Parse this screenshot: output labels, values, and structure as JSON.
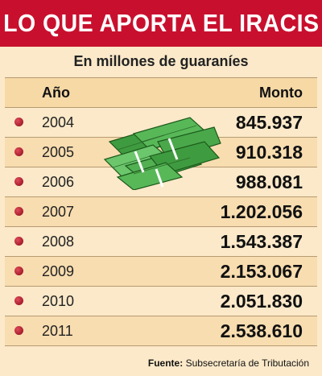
{
  "title": "LO QUE APORTA EL IRACIS",
  "subtitle": "En millones de guaraníes",
  "header": {
    "year_label": "Año",
    "amount_label": "Monto"
  },
  "colors": {
    "title_bg": "#c8102e",
    "bullet": "#b5102a",
    "background": "#fbe9c9"
  },
  "chart_data": {
    "type": "table",
    "title": "LO QUE APORTA EL IRACIS",
    "subtitle": "En millones de guaraníes",
    "columns": [
      "Año",
      "Monto"
    ],
    "rows": [
      {
        "year": "2004",
        "amount": "845.937"
      },
      {
        "year": "2005",
        "amount": "910.318"
      },
      {
        "year": "2006",
        "amount": "988.081"
      },
      {
        "year": "2007",
        "amount": "1.202.056"
      },
      {
        "year": "2008",
        "amount": "1.543.387"
      },
      {
        "year": "2009",
        "amount": "2.153.067"
      },
      {
        "year": "2010",
        "amount": "2.051.830"
      },
      {
        "year": "2011",
        "amount": "2.538.610"
      }
    ]
  },
  "footer": {
    "source_label": "Fuente:",
    "source_text": "Subsecretaría de Tributación"
  }
}
